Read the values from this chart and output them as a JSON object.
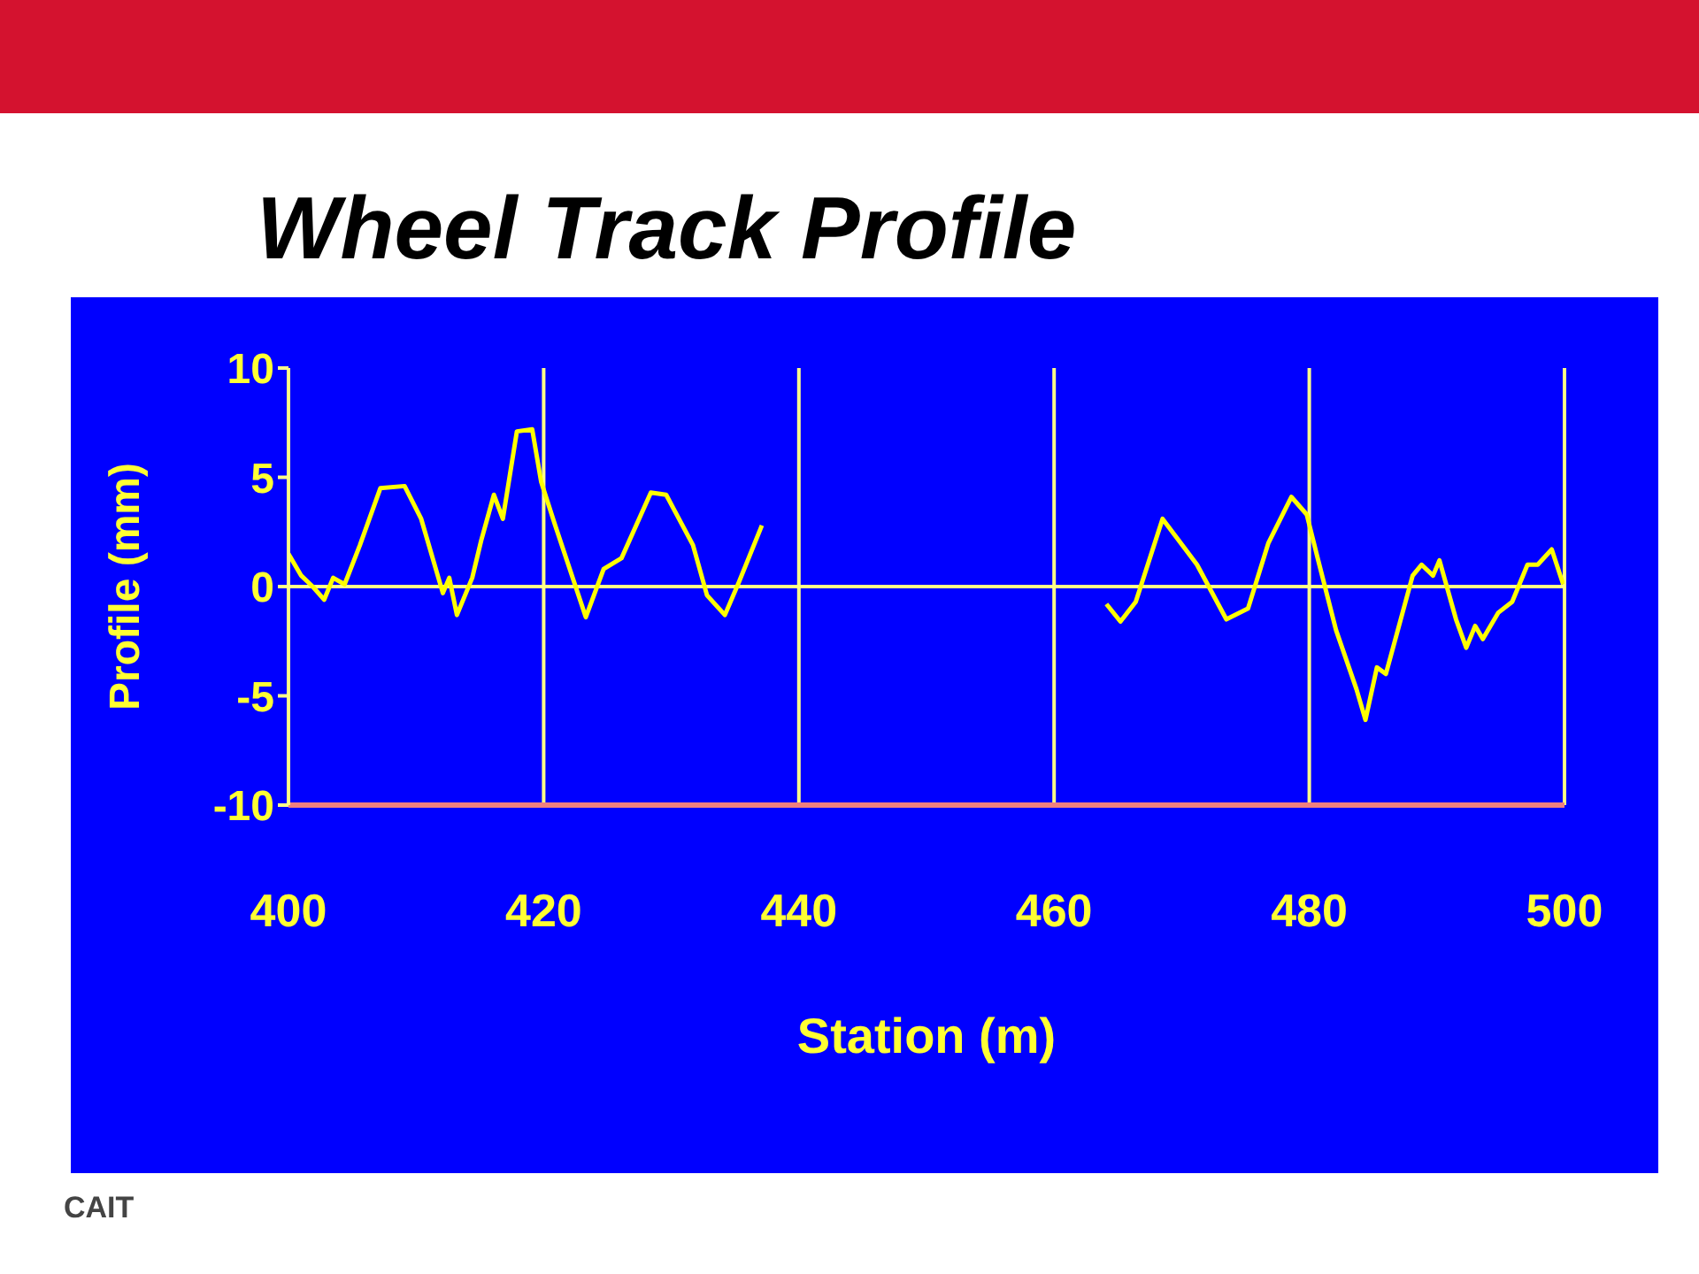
{
  "chart_data": {
    "type": "line",
    "title": "Wheel Track Profile",
    "xlabel": "Station (m)",
    "ylabel": "Profile (mm)",
    "annotations": [
      "CAIT"
    ],
    "x": [
      400.0,
      401.0,
      401.9,
      402.8,
      403.5,
      404.4,
      405.6,
      407.2,
      409.1,
      410.4,
      412.1,
      412.6,
      413.2,
      414.4,
      415.1,
      416.1,
      416.8,
      417.9,
      419.1,
      419.8,
      420.9,
      423.3,
      424.7,
      426.1,
      428.4,
      429.6,
      431.7,
      432.8,
      434.2,
      435.3,
      437.1,
      450,
      464.1,
      465.2,
      466.4,
      468.5,
      469.4,
      471.2,
      473.5,
      475.2,
      476.8,
      478.6,
      479.8,
      480.7,
      482.1,
      483.7,
      484.4,
      485.3,
      486.0,
      488.1,
      488.8,
      489.7,
      490.2,
      491.5,
      492.3,
      493.0,
      493.6,
      494.8,
      495.9,
      497.1,
      497.9,
      499.0,
      499.9
    ],
    "series": [
      {
        "color": "#ffff00",
        "values": [
          1.5,
          0.5,
          0.0,
          -0.6,
          0.4,
          0.1,
          1.9,
          4.5,
          4.6,
          3.1,
          -0.3,
          0.4,
          -1.3,
          0.4,
          2.1,
          4.2,
          3.1,
          7.1,
          7.2,
          4.8,
          2.8,
          -1.4,
          0.8,
          1.3,
          4.3,
          4.2,
          1.9,
          -0.4,
          -1.3,
          0.2,
          2.8,
          null,
          -0.8,
          -1.6,
          -0.7,
          3.1,
          2.4,
          1.0,
          -1.5,
          -1.0,
          2.0,
          4.1,
          3.3,
          1.2,
          -2.0,
          -4.7,
          -6.1,
          -3.7,
          -4.0,
          0.5,
          1.0,
          0.5,
          1.2,
          -1.5,
          -2.8,
          -1.8,
          -2.4,
          -1.2,
          -0.7,
          1.0,
          1.0,
          1.7,
          0.1
        ]
      }
    ],
    "xlim": [
      400,
      500
    ],
    "xticks": [
      400,
      420,
      440,
      460,
      480,
      500
    ],
    "ylim": [
      -10,
      10
    ],
    "yticks": [
      -10,
      -5,
      0,
      5,
      10
    ],
    "grid": "x",
    "ref_lines": [
      {
        "axis": "y",
        "value": 0,
        "color": "#ffff88"
      }
    ]
  }
}
